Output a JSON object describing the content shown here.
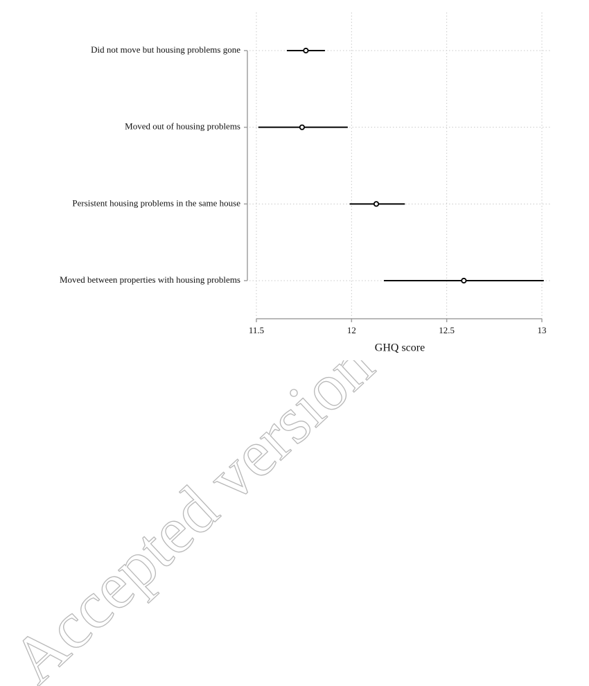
{
  "chart_data": {
    "type": "dotwhisker",
    "categories": [
      "Did not move but housing problems gone",
      "Moved out of housing problems",
      "Persistent housing problems in the same house",
      "Moved between properties with housing problems"
    ],
    "values": [
      11.76,
      11.74,
      12.13,
      12.59
    ],
    "lower": [
      11.66,
      11.51,
      11.99,
      12.17
    ],
    "upper": [
      11.86,
      11.98,
      12.28,
      13.01
    ],
    "color": "#000000",
    "xlabel": "GHQ score",
    "xlim": [
      11.5,
      13
    ],
    "xticks": [
      11.5,
      12,
      12.5,
      13
    ],
    "grid": true,
    "watermark": "Accepted version"
  }
}
